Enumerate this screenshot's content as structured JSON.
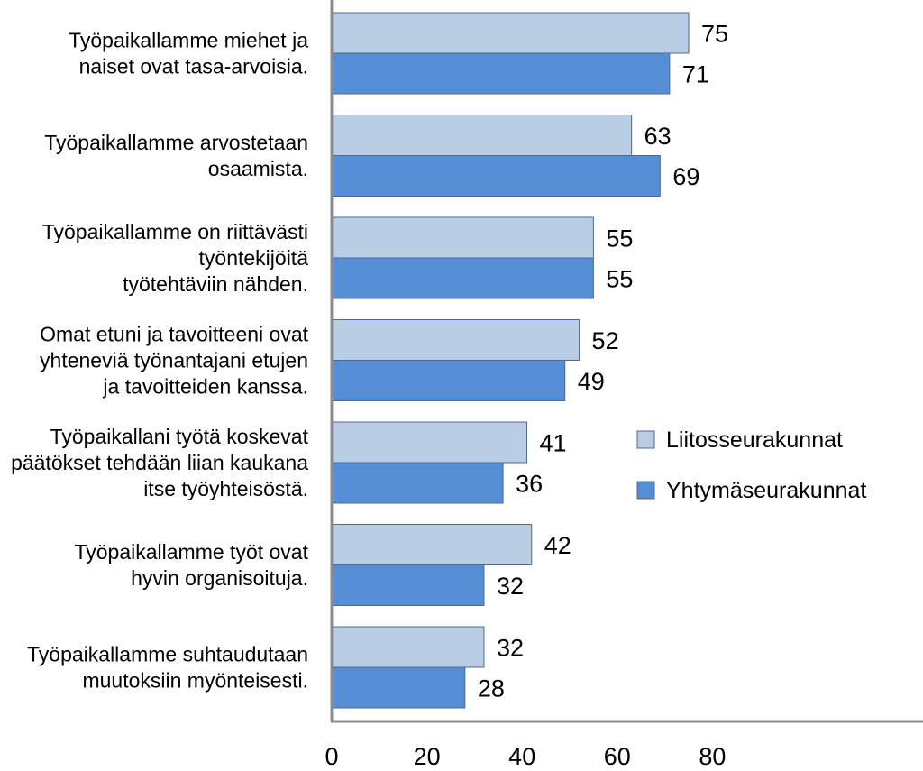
{
  "chart_data": {
    "type": "bar",
    "orientation": "horizontal",
    "categories": [
      [
        "Työpaikallamme miehet ja",
        "naiset ovat tasa-arvoisia."
      ],
      [
        "Työpaikallamme arvostetaan",
        "osaamista."
      ],
      [
        "Työpaikallamme on riittävästi",
        "työntekijöitä",
        "työtehtäviin nähden."
      ],
      [
        "Omat etuni ja tavoitteeni ovat",
        "yhteneviä työnantajani etujen",
        "ja tavoitteiden kanssa."
      ],
      [
        "Työpaikallani työtä koskevat",
        "päätökset tehdään liian kaukana",
        "itse työyhteisöstä."
      ],
      [
        "Työpaikallamme työt ovat",
        "hyvin organisoituja."
      ],
      [
        "Työpaikallamme suhtaudutaan",
        "muutoksiin myönteisesti."
      ]
    ],
    "series": [
      {
        "name": "Liitosseurakunnat",
        "values": [
          75,
          63,
          55,
          52,
          41,
          42,
          32
        ],
        "color": "#b9cde5"
      },
      {
        "name": "Yhtymäseurakunnat",
        "values": [
          71,
          69,
          55,
          49,
          36,
          32,
          28
        ],
        "color": "#558ed5"
      }
    ],
    "xlim": [
      0,
      80
    ],
    "xticks": [
      0,
      20,
      40,
      60,
      80
    ],
    "grid": false,
    "data_labels": true,
    "legend_position": "right",
    "title": "",
    "xlabel": "",
    "ylabel": ""
  }
}
